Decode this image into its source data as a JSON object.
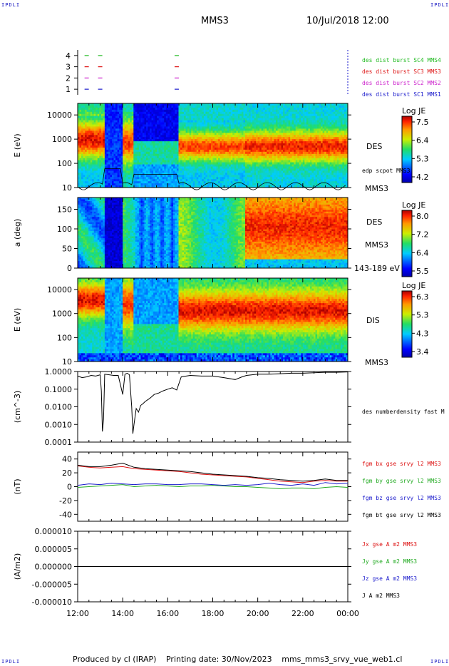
{
  "header": {
    "corner_tl": "IPDLI",
    "corner_tr": "IPDLI",
    "corner_bl": "IPDLI",
    "corner_br": "IPDLI",
    "spacecraft": "MMS3",
    "datetime": "10/Jul/2018 12:00"
  },
  "footer": {
    "produced": "Produced by cl (IRAP)",
    "printing": "Printing date: 30/Nov/2023",
    "file": "mms_mms3_srvy_vue_web1.cl"
  },
  "chart_data": [
    {
      "id": "availability",
      "type": "scatter",
      "yticks": [
        "1",
        "2",
        "3",
        "4"
      ],
      "ylim": [
        0.5,
        4.5
      ],
      "series": [
        {
          "name": "des dist burst SC1 MMS1",
          "y": 1,
          "color": "#1a1acc",
          "x_hours": [
            12.4,
            13.0,
            16.4
          ]
        },
        {
          "name": "des dist burst SC2 MMS2",
          "y": 2,
          "color": "#cc22cc",
          "x_hours": [
            12.4,
            13.0,
            16.4
          ]
        },
        {
          "name": "des dist burst SC3 MMS3",
          "y": 3,
          "color": "#dd1111",
          "x_hours": [
            12.4,
            13.0,
            16.4
          ]
        },
        {
          "name": "des dist burst SC4 MMS4",
          "y": 4,
          "color": "#22bb22",
          "x_hours": [
            12.4,
            13.0,
            16.4
          ]
        }
      ]
    },
    {
      "id": "des_energy",
      "type": "heatmap",
      "ylabel": "E (eV)",
      "yticks": [
        "10000",
        "1000",
        "100",
        "10"
      ],
      "ylim": [
        10,
        30000
      ],
      "label": "DES",
      "sublabel": "MMS3",
      "note": "edp scpot MMS3",
      "colorbar": {
        "title": "Log JE",
        "ticks": [
          "7.5",
          "6.4",
          "5.3",
          "4.2"
        ]
      }
    },
    {
      "id": "des_pitch",
      "type": "heatmap",
      "ylabel": "a (deg)",
      "yticks": [
        "150",
        "100",
        "50",
        "0"
      ],
      "ylim": [
        0,
        180
      ],
      "label": "DES",
      "sublabel": "MMS3",
      "energy_range": "143-189 eV",
      "colorbar": {
        "title": "Log JE",
        "ticks": [
          "8.0",
          "7.2",
          "6.4",
          "5.5"
        ]
      }
    },
    {
      "id": "dis_energy",
      "type": "heatmap",
      "ylabel": "E (eV)",
      "yticks": [
        "10000",
        "1000",
        "100",
        "10"
      ],
      "ylim": [
        10,
        30000
      ],
      "label": "DIS",
      "sublabel": "MMS3",
      "colorbar": {
        "title": "Log JE",
        "ticks": [
          "6.3",
          "5.3",
          "4.3",
          "3.4"
        ]
      }
    },
    {
      "id": "density",
      "type": "line",
      "ylabel": "(cm^-3)",
      "yticks": [
        "1.0000",
        "0.1000",
        "0.0100",
        "0.0010",
        "0.0001"
      ],
      "ylim": [
        0.0001,
        1.0
      ],
      "series": [
        {
          "name": "des numberdensity fast M",
          "color": "#000000",
          "x": [
            12.0,
            12.2,
            12.4,
            12.6,
            12.8,
            13.0,
            13.05,
            13.1,
            13.15,
            13.2,
            13.4,
            13.6,
            13.8,
            14.0,
            14.1,
            14.2,
            14.3,
            14.4,
            14.45,
            14.5,
            14.6,
            14.7,
            14.8,
            14.9,
            15.0,
            15.2,
            15.4,
            15.6,
            15.8,
            16.0,
            16.2,
            16.4,
            16.6,
            17.0,
            17.5,
            18.0,
            18.5,
            19.0,
            19.3,
            19.5,
            20.0,
            20.5,
            21.0,
            21.5,
            22.0,
            22.5,
            23.0,
            23.5,
            24.0
          ],
          "y": [
            0.55,
            0.45,
            0.5,
            0.6,
            0.55,
            0.65,
            0.08,
            0.0004,
            0.002,
            0.7,
            0.65,
            0.6,
            0.6,
            0.05,
            0.7,
            0.8,
            0.65,
            0.01,
            0.0003,
            0.001,
            0.008,
            0.005,
            0.012,
            0.015,
            0.02,
            0.03,
            0.05,
            0.06,
            0.08,
            0.1,
            0.12,
            0.09,
            0.5,
            0.6,
            0.55,
            0.55,
            0.45,
            0.35,
            0.5,
            0.6,
            0.7,
            0.7,
            0.75,
            0.8,
            0.8,
            0.85,
            0.9,
            0.9,
            0.95
          ]
        }
      ]
    },
    {
      "id": "magnetic_field",
      "type": "line",
      "ylabel": "(nT)",
      "yticks": [
        "40",
        "20",
        "0",
        "-20",
        "-40"
      ],
      "ylim": [
        -50,
        50
      ],
      "x": [
        12.0,
        12.5,
        13.0,
        13.5,
        14.0,
        14.5,
        15.0,
        15.5,
        16.0,
        16.5,
        17.0,
        17.5,
        18.0,
        18.5,
        19.0,
        19.5,
        20.0,
        20.5,
        21.0,
        21.5,
        22.0,
        22.5,
        23.0,
        23.5,
        24.0
      ],
      "series": [
        {
          "name": "fgm bx gse srvy l2 MMS3",
          "color": "#dd1111",
          "values": [
            30,
            28,
            27,
            28,
            29,
            26,
            25,
            24,
            23,
            22,
            20,
            18,
            17,
            16,
            15,
            14,
            12,
            10,
            8,
            7,
            6,
            8,
            9,
            8,
            8
          ]
        },
        {
          "name": "fgm by gse srvy l2 MMS3",
          "color": "#22aa22",
          "values": [
            -1,
            0,
            1,
            2,
            3,
            0,
            1,
            2,
            1,
            0,
            1,
            1,
            2,
            1,
            0,
            0,
            -1,
            -2,
            -3,
            -2,
            -2,
            -3,
            -1,
            0,
            -1
          ]
        },
        {
          "name": "fgm bz gse srvy l2 MMS3",
          "color": "#1a1acc",
          "values": [
            2,
            4,
            3,
            5,
            4,
            3,
            4,
            4,
            3,
            3,
            4,
            4,
            3,
            2,
            3,
            2,
            3,
            5,
            3,
            2,
            4,
            2,
            6,
            4,
            5
          ]
        },
        {
          "name": "fgm bt gse srvy l2 MMS3",
          "color": "#000000",
          "values": [
            31,
            29,
            29,
            31,
            34,
            28,
            26,
            25,
            24,
            23,
            22,
            20,
            18,
            17,
            16,
            15,
            13,
            12,
            10,
            9,
            8,
            9,
            11,
            9,
            9
          ]
        }
      ]
    },
    {
      "id": "current_density",
      "type": "line",
      "ylabel": "(A/m2)",
      "yticks": [
        "0.000010",
        "0.000005",
        "0.000000",
        "-0.000005",
        "-0.000010"
      ],
      "ylim": [
        -1e-05,
        1e-05
      ],
      "series": [
        {
          "name": "Jx gse A m2 MMS3",
          "color": "#dd1111"
        },
        {
          "name": "Jy gse A m2 MMS3",
          "color": "#22aa22"
        },
        {
          "name": "Jz gse A m2 MMS3",
          "color": "#1a1acc"
        },
        {
          "name": "J A m2 MMS3",
          "color": "#000000"
        }
      ]
    }
  ],
  "xaxis": {
    "ticks": [
      "12:00",
      "14:00",
      "16:00",
      "18:00",
      "20:00",
      "22:00",
      "00:00"
    ]
  }
}
